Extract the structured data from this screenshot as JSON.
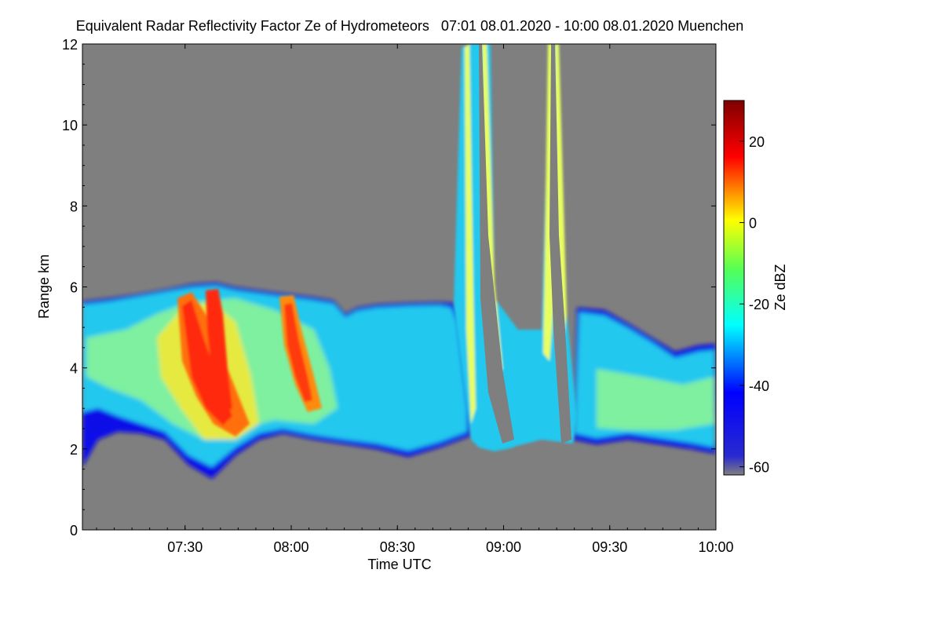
{
  "chart_data": {
    "type": "heatmap",
    "title": "Equivalent Radar Reflectivity Factor Ze of Hydrometeors   07:01 08.01.2020 - 10:00 08.01.2020 Muenchen",
    "xlabel": "Time UTC",
    "ylabel": "Range km",
    "x_range_minutes": [
      421,
      600
    ],
    "xlim": [
      "07:01",
      "10:00"
    ],
    "ylim": [
      0,
      12
    ],
    "x_ticks": [
      {
        "label": "07:30",
        "minutes": 450
      },
      {
        "label": "08:00",
        "minutes": 480
      },
      {
        "label": "08:30",
        "minutes": 510
      },
      {
        "label": "09:00",
        "minutes": 540
      },
      {
        "label": "09:30",
        "minutes": 570
      },
      {
        "label": "10:00",
        "minutes": 600
      }
    ],
    "y_ticks": [
      0,
      2,
      4,
      6,
      8,
      10,
      12
    ],
    "colorbar": {
      "label": "Ze dBZ",
      "range": [
        -62,
        30
      ],
      "ticks": [
        20,
        0,
        -20,
        -40,
        -60
      ]
    },
    "colors": {
      "background": "#7f7f7f",
      "scale": [
        "#7f7f7f",
        "#0000ff",
        "#00ffff",
        "#00ff00",
        "#ffff00",
        "#ff0000",
        "#7f0000"
      ]
    },
    "features": [
      {
        "desc": "cloud layer",
        "time_start": "07:01",
        "time_end": "08:45",
        "base_km": 2.0,
        "top_km": 5.7,
        "ze_dbz": -25
      },
      {
        "desc": "precipitation streak",
        "time": "07:35",
        "base_km": 2.4,
        "top_km": 6.0,
        "ze_dbz": 15
      },
      {
        "desc": "precipitation streak",
        "time": "08:03",
        "base_km": 3.2,
        "top_km": 5.6,
        "ze_dbz": 10
      },
      {
        "desc": "tall column",
        "time": "08:53",
        "base_km": 2.0,
        "top_km": 12,
        "ze_dbz": -10
      },
      {
        "desc": "tall column",
        "time": "09:11",
        "base_km": 2.1,
        "top_km": 12,
        "ze_dbz": -10
      },
      {
        "desc": "low cloud",
        "time_start": "09:20",
        "time_end": "10:00",
        "base_km": 2.0,
        "top_km": 4.5,
        "ze_dbz": -25
      }
    ]
  }
}
